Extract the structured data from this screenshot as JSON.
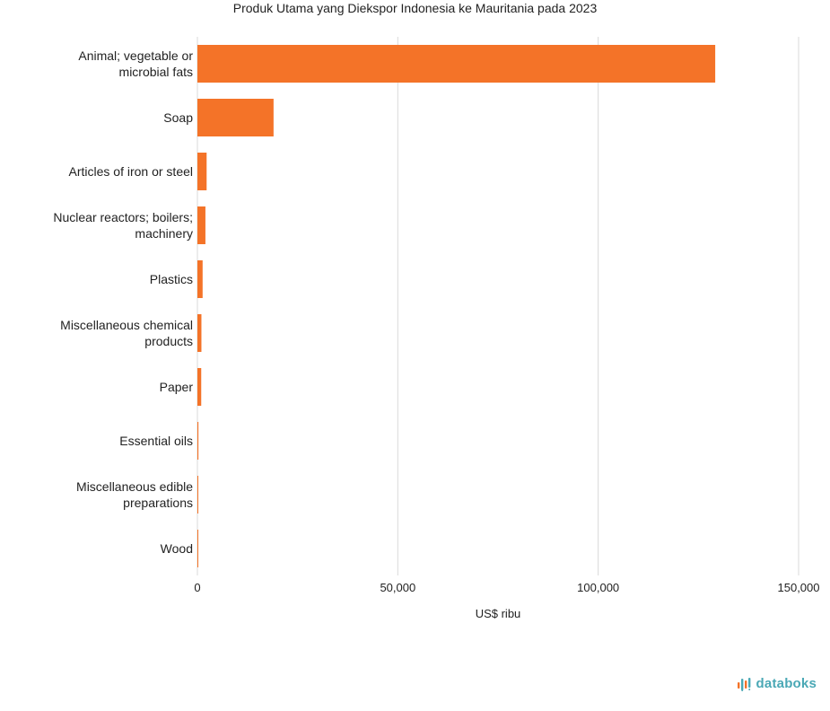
{
  "colors": {
    "bar": "#F47328",
    "grid": "#D9D9D9",
    "brand": "#4AA8B5",
    "brand_accent": "#F47328"
  },
  "brand": {
    "name": "databoks",
    "icon": "databoks-logo-icon"
  },
  "chart_data": {
    "type": "bar",
    "orientation": "horizontal",
    "title": "Produk Utama yang Diekspor Indonesia ke Mauritania pada 2023",
    "xlabel": "US$ ribu",
    "ylabel": "",
    "xlim": [
      0,
      150000
    ],
    "ticks": [
      0,
      50000,
      100000,
      150000
    ],
    "tick_labels": [
      "0",
      "50,000",
      "100,000",
      "150,000"
    ],
    "grid": true,
    "categories": [
      [
        "Animal; vegetable or",
        "microbial fats"
      ],
      [
        "Soap"
      ],
      [
        "Articles of iron or steel"
      ],
      [
        "Nuclear reactors; boilers;",
        "machinery"
      ],
      [
        "Plastics"
      ],
      [
        "Miscellaneous chemical",
        "products"
      ],
      [
        "Paper"
      ],
      [
        "Essential oils"
      ],
      [
        "Miscellaneous edible",
        "preparations"
      ],
      [
        "Wood"
      ]
    ],
    "values": [
      129200,
      19000,
      2300,
      2000,
      1300,
      1000,
      950,
      250,
      150,
      120
    ]
  }
}
